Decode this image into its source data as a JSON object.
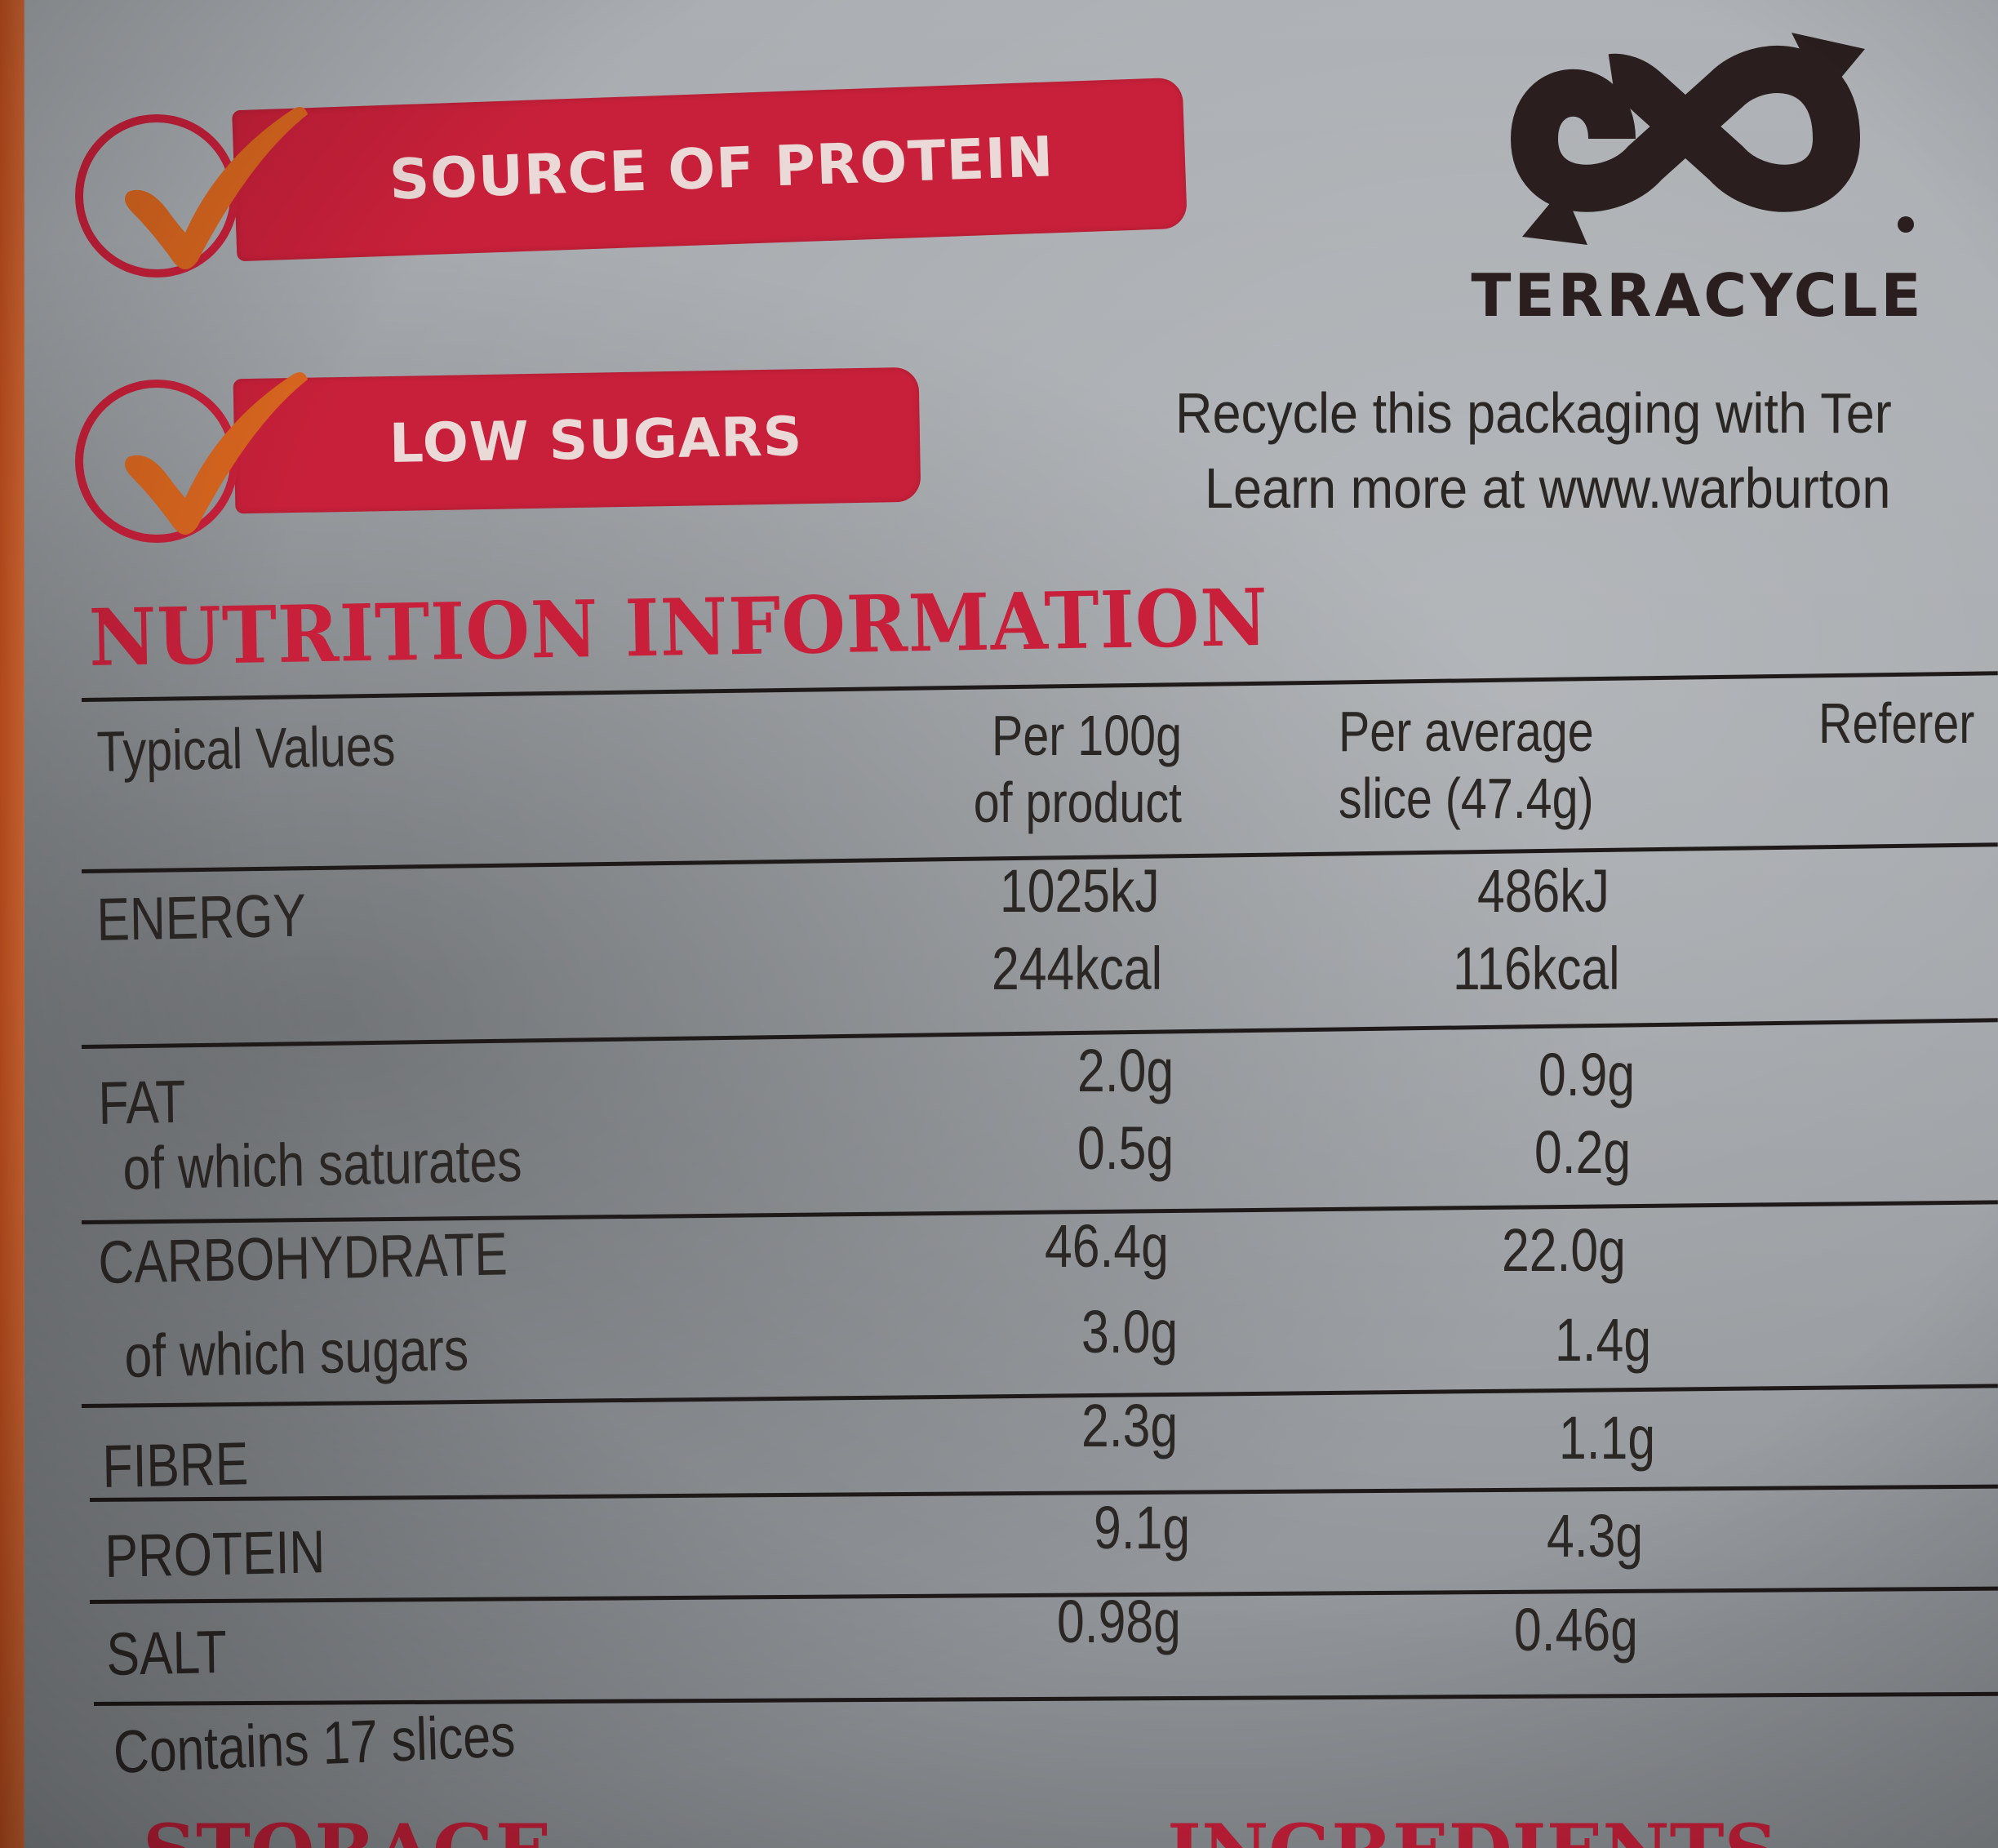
{
  "badges": {
    "protein_label": "SOURCE OF PROTEIN",
    "sugars_label": "LOW SUGARS"
  },
  "terracycle": {
    "logo_name": "TERRACYCLE",
    "line1": "Recycle this packaging with Ter",
    "line2": "Learn more at www.warburton"
  },
  "nutrition": {
    "heading": "NUTRITION INFORMATION",
    "headers": {
      "typical": "Typical Values",
      "per100_line1": "Per 100g",
      "per100_line2": "of product",
      "slice_line1": "Per average",
      "slice_line2": "slice (47.4g)",
      "reference": "Referer"
    },
    "rows": {
      "energy": {
        "label": "ENERGY",
        "per100_kj": "1025kJ",
        "per100_kcal": "244kcal",
        "slice_kj": "486kJ",
        "slice_kcal": "116kcal"
      },
      "fat": {
        "label": "FAT",
        "per100": "2.0g",
        "slice": "0.9g"
      },
      "saturates": {
        "label": "of which saturates",
        "per100": "0.5g",
        "slice": "0.2g"
      },
      "carbohydrate": {
        "label": "CARBOHYDRATE",
        "per100": "46.4g",
        "slice": "22.0g"
      },
      "sugars": {
        "label": "of which sugars",
        "per100": "3.0g",
        "slice": "1.4g"
      },
      "fibre": {
        "label": "FIBRE",
        "per100": "2.3g",
        "slice": "1.1g"
      },
      "protein": {
        "label": "PROTEIN",
        "per100": "9.1g",
        "slice": "4.3g"
      },
      "salt": {
        "label": "SALT",
        "per100": "0.98g",
        "slice": "0.46g"
      }
    },
    "footer": "Contains 17 slices"
  },
  "bottom": {
    "left_cut": "STORAGE",
    "right_cut": "INGREDIENTS"
  },
  "colors": {
    "accent_red": "#c8203a",
    "check_orange": "#d9661f",
    "ink": "#2b2725"
  }
}
